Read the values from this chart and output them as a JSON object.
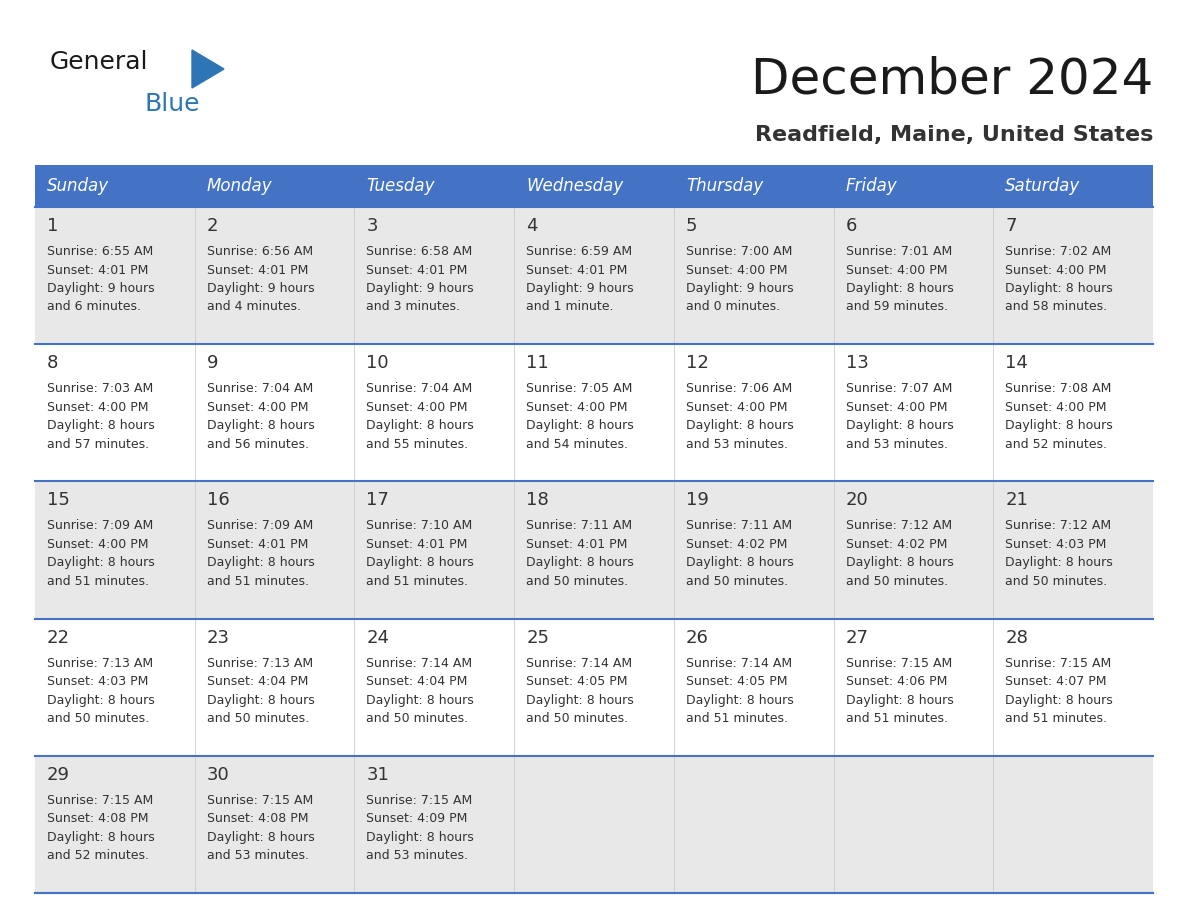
{
  "title": "December 2024",
  "subtitle": "Readfield, Maine, United States",
  "header_bg_color": "#4472C4",
  "header_text_color": "#FFFFFF",
  "cell_bg_color_odd": "#E8E8E8",
  "cell_bg_color_even": "#FFFFFF",
  "border_color": "#4472C4",
  "text_color": "#333333",
  "days_of_week": [
    "Sunday",
    "Monday",
    "Tuesday",
    "Wednesday",
    "Thursday",
    "Friday",
    "Saturday"
  ],
  "calendar_data": [
    [
      {
        "day": 1,
        "sunrise": "6:55 AM",
        "sunset": "4:01 PM",
        "daylight_hours": 9,
        "daylight_minutes": 6
      },
      {
        "day": 2,
        "sunrise": "6:56 AM",
        "sunset": "4:01 PM",
        "daylight_hours": 9,
        "daylight_minutes": 4
      },
      {
        "day": 3,
        "sunrise": "6:58 AM",
        "sunset": "4:01 PM",
        "daylight_hours": 9,
        "daylight_minutes": 3
      },
      {
        "day": 4,
        "sunrise": "6:59 AM",
        "sunset": "4:01 PM",
        "daylight_hours": 9,
        "daylight_minutes": 1
      },
      {
        "day": 5,
        "sunrise": "7:00 AM",
        "sunset": "4:00 PM",
        "daylight_hours": 9,
        "daylight_minutes": 0
      },
      {
        "day": 6,
        "sunrise": "7:01 AM",
        "sunset": "4:00 PM",
        "daylight_hours": 8,
        "daylight_minutes": 59
      },
      {
        "day": 7,
        "sunrise": "7:02 AM",
        "sunset": "4:00 PM",
        "daylight_hours": 8,
        "daylight_minutes": 58
      }
    ],
    [
      {
        "day": 8,
        "sunrise": "7:03 AM",
        "sunset": "4:00 PM",
        "daylight_hours": 8,
        "daylight_minutes": 57
      },
      {
        "day": 9,
        "sunrise": "7:04 AM",
        "sunset": "4:00 PM",
        "daylight_hours": 8,
        "daylight_minutes": 56
      },
      {
        "day": 10,
        "sunrise": "7:04 AM",
        "sunset": "4:00 PM",
        "daylight_hours": 8,
        "daylight_minutes": 55
      },
      {
        "day": 11,
        "sunrise": "7:05 AM",
        "sunset": "4:00 PM",
        "daylight_hours": 8,
        "daylight_minutes": 54
      },
      {
        "day": 12,
        "sunrise": "7:06 AM",
        "sunset": "4:00 PM",
        "daylight_hours": 8,
        "daylight_minutes": 53
      },
      {
        "day": 13,
        "sunrise": "7:07 AM",
        "sunset": "4:00 PM",
        "daylight_hours": 8,
        "daylight_minutes": 53
      },
      {
        "day": 14,
        "sunrise": "7:08 AM",
        "sunset": "4:00 PM",
        "daylight_hours": 8,
        "daylight_minutes": 52
      }
    ],
    [
      {
        "day": 15,
        "sunrise": "7:09 AM",
        "sunset": "4:00 PM",
        "daylight_hours": 8,
        "daylight_minutes": 51
      },
      {
        "day": 16,
        "sunrise": "7:09 AM",
        "sunset": "4:01 PM",
        "daylight_hours": 8,
        "daylight_minutes": 51
      },
      {
        "day": 17,
        "sunrise": "7:10 AM",
        "sunset": "4:01 PM",
        "daylight_hours": 8,
        "daylight_minutes": 51
      },
      {
        "day": 18,
        "sunrise": "7:11 AM",
        "sunset": "4:01 PM",
        "daylight_hours": 8,
        "daylight_minutes": 50
      },
      {
        "day": 19,
        "sunrise": "7:11 AM",
        "sunset": "4:02 PM",
        "daylight_hours": 8,
        "daylight_minutes": 50
      },
      {
        "day": 20,
        "sunrise": "7:12 AM",
        "sunset": "4:02 PM",
        "daylight_hours": 8,
        "daylight_minutes": 50
      },
      {
        "day": 21,
        "sunrise": "7:12 AM",
        "sunset": "4:03 PM",
        "daylight_hours": 8,
        "daylight_minutes": 50
      }
    ],
    [
      {
        "day": 22,
        "sunrise": "7:13 AM",
        "sunset": "4:03 PM",
        "daylight_hours": 8,
        "daylight_minutes": 50
      },
      {
        "day": 23,
        "sunrise": "7:13 AM",
        "sunset": "4:04 PM",
        "daylight_hours": 8,
        "daylight_minutes": 50
      },
      {
        "day": 24,
        "sunrise": "7:14 AM",
        "sunset": "4:04 PM",
        "daylight_hours": 8,
        "daylight_minutes": 50
      },
      {
        "day": 25,
        "sunrise": "7:14 AM",
        "sunset": "4:05 PM",
        "daylight_hours": 8,
        "daylight_minutes": 50
      },
      {
        "day": 26,
        "sunrise": "7:14 AM",
        "sunset": "4:05 PM",
        "daylight_hours": 8,
        "daylight_minutes": 51
      },
      {
        "day": 27,
        "sunrise": "7:15 AM",
        "sunset": "4:06 PM",
        "daylight_hours": 8,
        "daylight_minutes": 51
      },
      {
        "day": 28,
        "sunrise": "7:15 AM",
        "sunset": "4:07 PM",
        "daylight_hours": 8,
        "daylight_minutes": 51
      }
    ],
    [
      {
        "day": 29,
        "sunrise": "7:15 AM",
        "sunset": "4:08 PM",
        "daylight_hours": 8,
        "daylight_minutes": 52
      },
      {
        "day": 30,
        "sunrise": "7:15 AM",
        "sunset": "4:08 PM",
        "daylight_hours": 8,
        "daylight_minutes": 53
      },
      {
        "day": 31,
        "sunrise": "7:15 AM",
        "sunset": "4:09 PM",
        "daylight_hours": 8,
        "daylight_minutes": 53
      },
      null,
      null,
      null,
      null
    ]
  ],
  "logo_triangle_color": "#2E75B6",
  "logo_general_color": "#1a1a1a",
  "logo_blue_color": "#2E75B6",
  "title_fontsize": 36,
  "subtitle_fontsize": 16,
  "header_fontsize": 12,
  "day_num_fontsize": 13,
  "cell_text_fontsize": 9
}
